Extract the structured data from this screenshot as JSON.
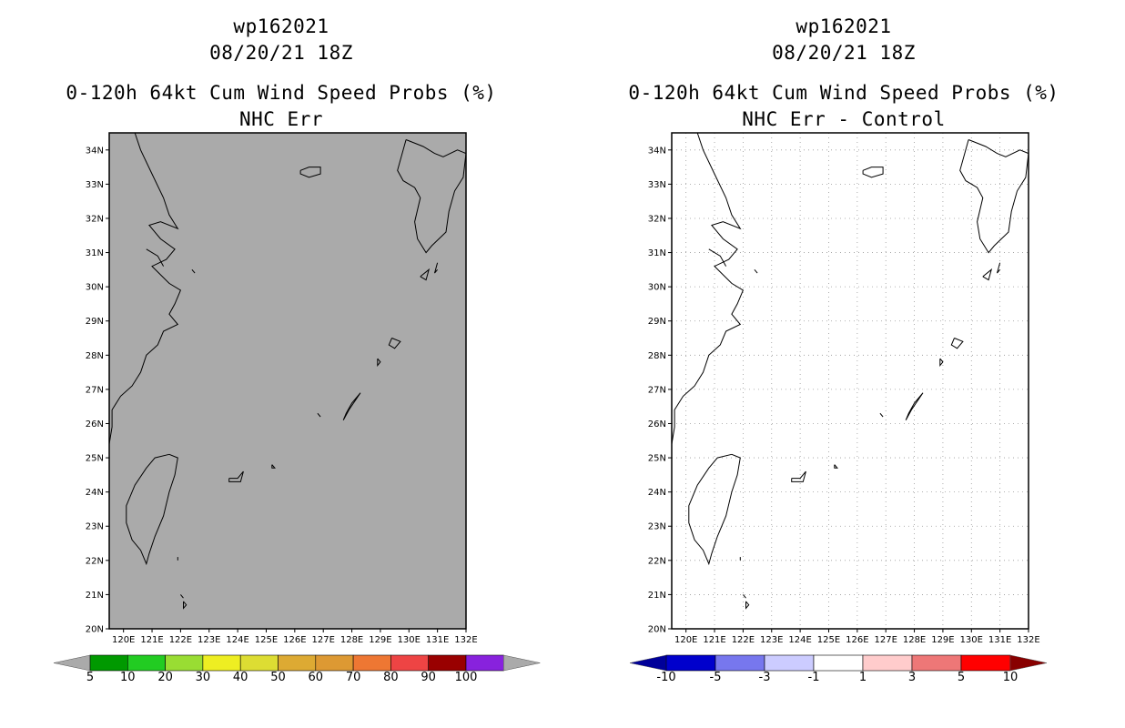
{
  "left_panel": {
    "storm_id": "wp162021",
    "datetime": "08/20/21 18Z",
    "product": "0-120h 64kt Cum Wind Speed Probs (%)",
    "subtitle": "NHC Err",
    "map_fill": "#aaaaaa",
    "colorbar": {
      "labels": [
        "5",
        "10",
        "20",
        "30",
        "40",
        "50",
        "60",
        "70",
        "80",
        "90",
        "100"
      ],
      "colors": [
        "#009900",
        "#22cc22",
        "#99dd33",
        "#eeee22",
        "#dddd33",
        "#ddaa33",
        "#dd9933",
        "#ee7733",
        "#ee4444",
        "#990000",
        "#8822dd"
      ],
      "end_colors": [
        "#aaaaaa",
        "#aaaaaa"
      ]
    }
  },
  "right_panel": {
    "storm_id": "wp162021",
    "datetime": "08/20/21 18Z",
    "product": "0-120h 64kt Cum Wind Speed Probs (%)",
    "subtitle": "NHC Err - Control",
    "map_fill": "#ffffff",
    "colorbar": {
      "labels": [
        "-10",
        "-5",
        "-3",
        "-1",
        "1",
        "3",
        "5",
        "10"
      ],
      "colors": [
        "#0000cc",
        "#7777ee",
        "#ccccff",
        "#ffffff",
        "#ffcccc",
        "#ee7777",
        "#ff0000"
      ],
      "end_colors": [
        "#000099",
        "#880000"
      ]
    }
  },
  "map": {
    "lat_labels": [
      "20N",
      "21N",
      "22N",
      "23N",
      "24N",
      "25N",
      "26N",
      "27N",
      "28N",
      "29N",
      "30N",
      "31N",
      "32N",
      "33N",
      "34N"
    ],
    "lon_labels": [
      "120E",
      "121E",
      "122E",
      "123E",
      "124E",
      "125E",
      "126E",
      "127E",
      "128E",
      "129E",
      "130E",
      "131E",
      "132E"
    ]
  }
}
